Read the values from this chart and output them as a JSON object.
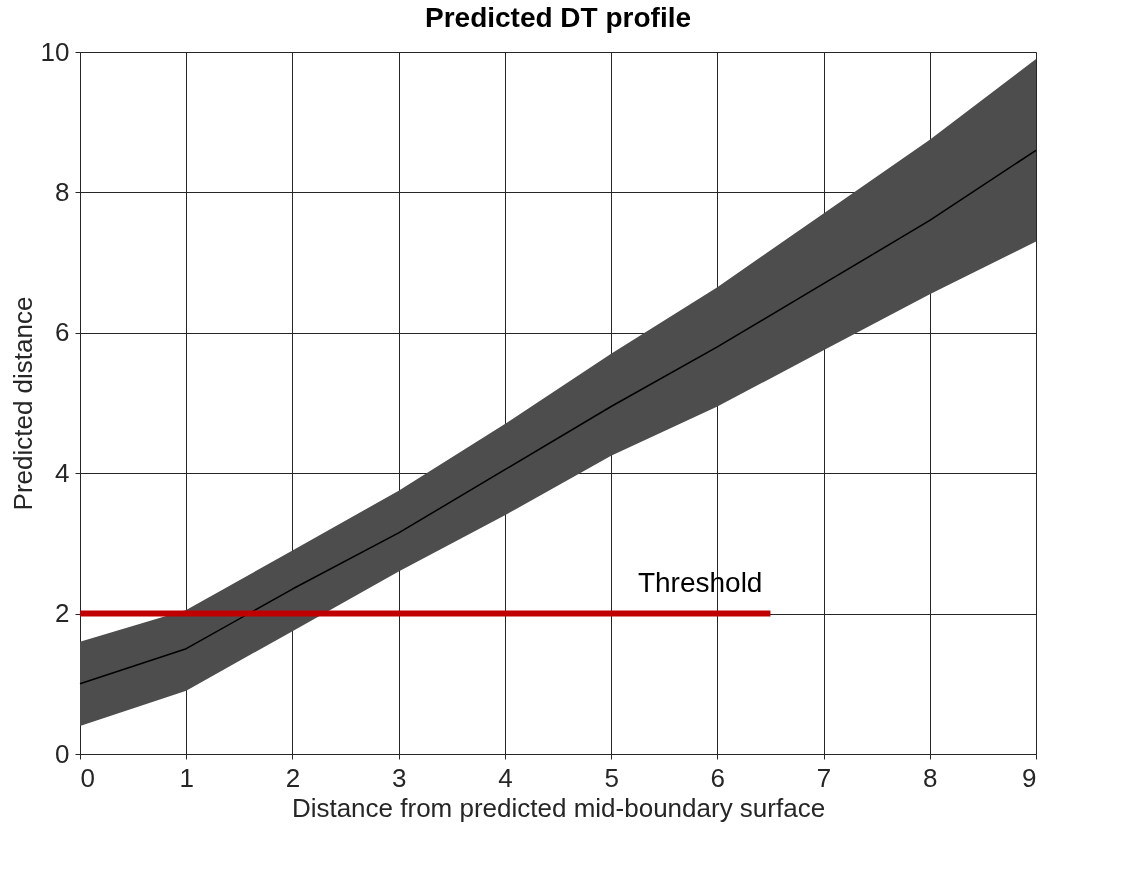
{
  "chart_data": {
    "type": "line",
    "title": "Predicted DT profile",
    "xlabel": "Distance from predicted mid-boundary surface",
    "ylabel": "Predicted distance",
    "x": [
      0,
      1,
      2,
      3,
      4,
      5,
      6,
      7,
      8,
      9
    ],
    "series": [
      {
        "color": "#000000",
        "values": [
          1.0,
          1.5,
          2.35,
          3.15,
          4.05,
          4.95,
          5.8,
          6.7,
          7.6,
          8.6
        ],
        "lower": [
          0.4,
          0.9,
          1.75,
          2.6,
          3.4,
          4.25,
          4.95,
          5.75,
          6.55,
          7.3
        ],
        "upper": [
          1.6,
          2.05,
          2.9,
          3.75,
          4.7,
          5.7,
          6.65,
          7.7,
          8.75,
          9.9
        ]
      },
      {
        "name": "Threshold",
        "type": "line",
        "color": "#c00000",
        "x": [
          0,
          6.5
        ],
        "values": [
          2,
          2
        ]
      }
    ],
    "xlim": [
      0,
      9
    ],
    "xticks": [
      0,
      1,
      2,
      3,
      4,
      5,
      6,
      7,
      8,
      9
    ],
    "ylim": [
      0,
      10
    ],
    "yticks": [
      0,
      2,
      4,
      6,
      8,
      10
    ],
    "grid": true,
    "legend": false
  }
}
